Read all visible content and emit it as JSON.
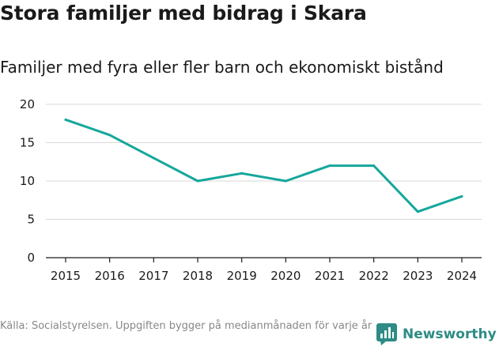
{
  "header": {
    "title": "Stora familjer med bidrag i Skara",
    "subtitle": "Familjer med fyra eller fler barn och ekonomiskt bistånd"
  },
  "footer": {
    "source": "Källa: Socialstyrelsen. Uppgiften bygger på medianmånaden för varje år",
    "brand": "Newsworthy"
  },
  "colors": {
    "line": "#15a79b",
    "grid": "#d9d9d9",
    "axis": "#1a1a1a",
    "brand": "#2e8b85"
  },
  "chart_data": {
    "type": "line",
    "title": "Stora familjer med bidrag i Skara",
    "subtitle": "Familjer med fyra eller fler barn och ekonomiskt bistånd",
    "xlabel": "",
    "ylabel": "",
    "categories": [
      "2015",
      "2016",
      "2017",
      "2018",
      "2019",
      "2020",
      "2021",
      "2022",
      "2023",
      "2024"
    ],
    "series": [
      {
        "name": "Familjer",
        "values": [
          18,
          16,
          13,
          10,
          11,
          10,
          12,
          12,
          6,
          8
        ]
      }
    ],
    "ylim": [
      0,
      20
    ],
    "yticks": [
      0,
      5,
      10,
      15,
      20
    ],
    "grid": true,
    "legend": "none"
  }
}
